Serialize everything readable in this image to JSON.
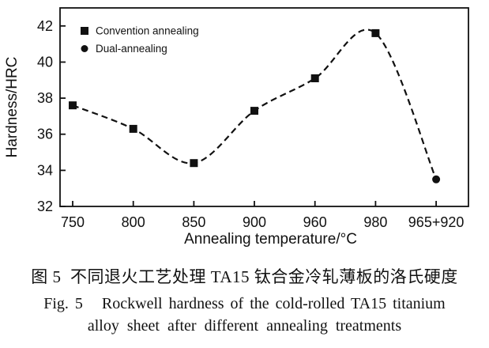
{
  "figure": {
    "caption_cn": "图 5  不同退火工艺处理 TA15 钛合金冷轧薄板的洛氏硬度",
    "caption_en_line1": "Fig. 5   Rockwell hardness of the cold-rolled TA15 titanium",
    "caption_en_line2": "alloy sheet after different annealing treatments"
  },
  "chart_data": {
    "type": "line",
    "title": "",
    "xlabel": "Annealing temperature/°C",
    "ylabel": "Hardness/HRC",
    "categories": [
      "750",
      "800",
      "850",
      "900",
      "960",
      "980",
      "965+920"
    ],
    "series": [
      {
        "name": "Convention annealing",
        "marker": "square",
        "values": [
          37.6,
          36.3,
          34.4,
          37.3,
          39.1,
          41.6,
          null
        ]
      },
      {
        "name": "Dual-annealing",
        "marker": "circle",
        "values": [
          null,
          null,
          null,
          null,
          null,
          null,
          33.5
        ]
      }
    ],
    "connecting_line_values": [
      37.6,
      36.3,
      34.4,
      37.3,
      39.1,
      41.6,
      33.5
    ],
    "line_style": "dashed",
    "ylim": [
      32,
      43
    ],
    "yticks": [
      32,
      34,
      36,
      38,
      40,
      42
    ],
    "grid": false,
    "legend_position": "top-left",
    "colors": {
      "foreground": "#111111",
      "background": "#ffffff"
    }
  }
}
